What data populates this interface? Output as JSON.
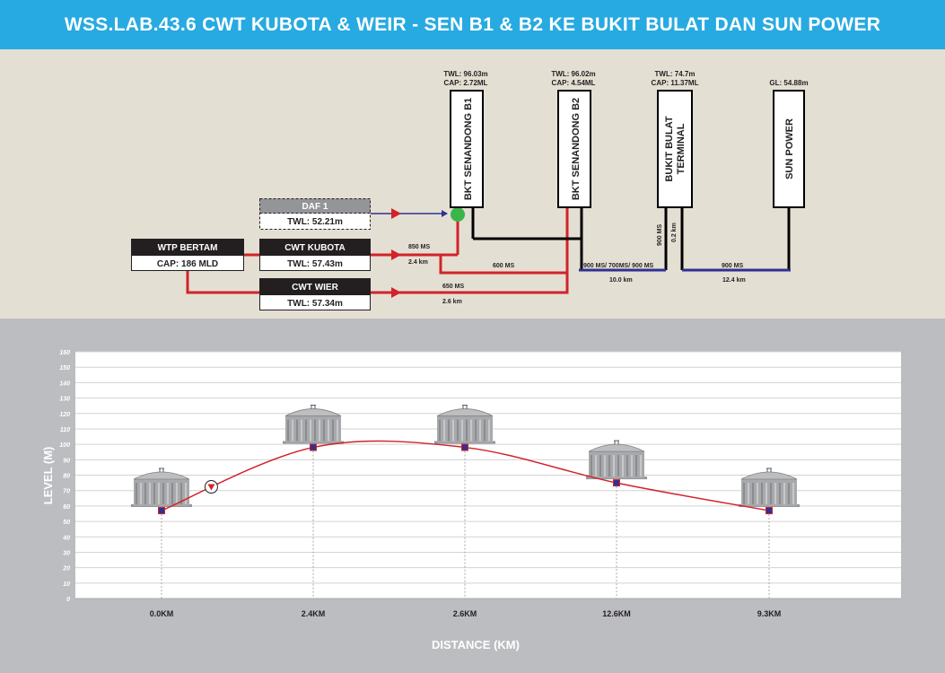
{
  "header": {
    "title": "WSS.LAB.43.6 CWT KUBOTA & WEIR - SEN B1 & B2 KE BUKIT BULAT DAN SUN POWER"
  },
  "schematic": {
    "sources": {
      "wtp": {
        "title": "WTP BERTAM",
        "value": "CAP: 186 MLD"
      },
      "daf": {
        "title": "DAF 1",
        "value": "TWL: 52.21m"
      },
      "kubota": {
        "title": "CWT KUBOTA",
        "value": "TWL: 57.43m"
      },
      "wier": {
        "title": "CWT WIER",
        "value": "TWL: 57.34m"
      }
    },
    "towers": {
      "b1": {
        "name": "BKT SENANDONG B1",
        "line1": "TWL: 96.03m",
        "line2": "CAP: 2.72ML"
      },
      "b2": {
        "name": "BKT SENANDONG B2",
        "line1": "TWL: 96.02m",
        "line2": "CAP: 4.54ML"
      },
      "bb": {
        "name_line1": "BUKIT BULAT",
        "name_line2": "TERMINAL",
        "line1": "TWL: 74.7m",
        "line2": "CAP: 11.37ML"
      },
      "sp": {
        "name": "SUN POWER",
        "line1": "GL: 54.88m"
      }
    },
    "pipes": {
      "kubota_size": "850 MS",
      "kubota_len": "2.4 km",
      "wier_size": "650 MS",
      "wier_len": "2.6 km",
      "mid_size": "600 MS",
      "bb_feed_size": "900 MS/ 700MS/ 900 MS",
      "bb_feed_len": "10.0 km",
      "bb_vert_size": "900 MS",
      "bb_vert_len": "0.2 km",
      "sp_size": "900 MS",
      "sp_len": "12.4 km"
    },
    "colors": {
      "red_pipe": "#d2232a",
      "blue_pipe": "#2e3192",
      "black_pipe": "#000000",
      "valve": "#39b54a",
      "box_dark": "#231f20",
      "box_grey": "#939598"
    }
  },
  "chart_data": {
    "type": "line",
    "xlabel": "DISTANCE (KM)",
    "ylabel": "LEVEL (M)",
    "ylim": [
      0,
      160
    ],
    "yticks": [
      0,
      10,
      20,
      30,
      40,
      50,
      60,
      70,
      80,
      90,
      100,
      110,
      120,
      130,
      140,
      150,
      160
    ],
    "categories": [
      "0.0KM",
      "2.4KM",
      "2.6KM",
      "12.6KM",
      "9.3KM"
    ],
    "series": [
      {
        "values": [
          57,
          98,
          98,
          75,
          57
        ],
        "color": "#d2232a"
      }
    ],
    "pump_marker": {
      "between": [
        0,
        1
      ],
      "at_fraction": 0.4,
      "icon": "pump-icon"
    },
    "tank_icons": true,
    "grid": true
  }
}
